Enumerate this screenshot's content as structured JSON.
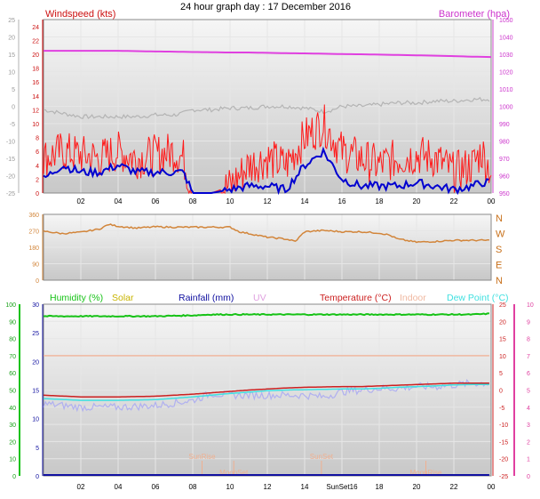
{
  "title": "24 hour graph day : 17 December 2016",
  "colors": {
    "background": "#ffffff",
    "plot_top": "#f6f6f6",
    "plot_bottom": "#c8c8c8",
    "grid": "#e6e6e6",
    "wind_speed": "#ff1a1a",
    "wind_avg": "#0000d0",
    "barometer": "#e040e0",
    "temp_left_axis": "#c0c0c0",
    "direction": "#d2853a",
    "humidity": "#16c216",
    "solar": "#c8b400",
    "rainfall": "#1010a0",
    "uv": "#e0a0e0",
    "temperature": "#cc2020",
    "indoor": "#f0b8a0",
    "dew_point": "#40e0e0",
    "apparent": "#b0b0f0",
    "sun_markers": "#f0b090"
  },
  "chart_data": [
    {
      "type": "line",
      "title": "Windspeed (kts)",
      "right_title": "Barometer (hpa)",
      "x_ticks": [
        "02",
        "04",
        "06",
        "08",
        "10",
        "12",
        "14",
        "16",
        "18",
        "20",
        "22",
        "00"
      ],
      "y_left_far_ticks": [
        "25",
        "20",
        "15",
        "10",
        "5",
        "0",
        "-5",
        "-10",
        "-15",
        "-20",
        "-25"
      ],
      "y_left_ticks": [
        "24",
        "22",
        "20",
        "18",
        "16",
        "14",
        "12",
        "10",
        "8",
        "6",
        "4",
        "2",
        "0"
      ],
      "y_right_ticks": [
        "1050",
        "1040",
        "1030",
        "1020",
        "1010",
        "1000",
        "990",
        "980",
        "970",
        "960",
        "950"
      ],
      "ylim_speed": [
        0,
        25
      ],
      "ylim_baro": [
        950,
        1050
      ],
      "ylim_temp": [
        -25,
        25
      ],
      "x_hours": [
        0,
        1,
        2,
        3,
        4,
        5,
        6,
        7,
        7.5,
        8,
        9,
        10,
        11,
        12,
        13,
        14,
        15,
        15.5,
        16,
        17,
        18,
        19,
        20,
        21,
        22,
        23,
        23.5,
        24
      ],
      "series": [
        {
          "name": "Barometer",
          "values": [
            1032,
            1032,
            1032,
            1032,
            1032,
            1031.8,
            1031.6,
            1031.5,
            1031.4,
            1031.3,
            1031.2,
            1031,
            1031,
            1030.8,
            1030.6,
            1030.5,
            1030.3,
            1030.2,
            1030.1,
            1030,
            1029.8,
            1029.6,
            1029.4,
            1029.2,
            1028.9,
            1028.6,
            1028.5,
            1028.4
          ]
        },
        {
          "name": "Temperature",
          "values": [
            -1,
            -2,
            -3,
            -3,
            -3,
            -3,
            -2.5,
            -2.5,
            -2,
            -1,
            -1,
            -0.5,
            -0.5,
            0,
            0,
            -0.5,
            -1.5,
            -1,
            0,
            0,
            0.5,
            1,
            1,
            1.5,
            1.5,
            2,
            2,
            2
          ]
        },
        {
          "name": "Wind Speed",
          "values": [
            5,
            6,
            5.5,
            5,
            6,
            5,
            5.5,
            6,
            5,
            0,
            0,
            1,
            4,
            5,
            4,
            8,
            10,
            8,
            6,
            5,
            4,
            5,
            5.5,
            5,
            3,
            4,
            6,
            3
          ]
        },
        {
          "name": "Average",
          "values": [
            2,
            4,
            3,
            3,
            4,
            3,
            3,
            3,
            3,
            0,
            0,
            0.5,
            1,
            1,
            0.5,
            4,
            6,
            4,
            2,
            1,
            1,
            1,
            1.5,
            1,
            0.5,
            1,
            1.5,
            1.5
          ]
        }
      ]
    },
    {
      "type": "line",
      "y_ticks": [
        "360",
        "270",
        "180",
        "90",
        "0"
      ],
      "y_right_labels": [
        "N",
        "W",
        "S",
        "E",
        "N"
      ],
      "ylim": [
        0,
        360
      ],
      "x_hours": [
        0,
        1,
        2,
        3,
        3.5,
        4,
        5,
        6,
        7,
        8,
        9,
        10,
        10.5,
        11,
        12,
        13,
        13.5,
        14,
        15,
        16,
        17,
        18,
        18.5,
        19,
        20,
        21,
        22,
        23,
        24
      ],
      "series": [
        {
          "name": "Wind Direction",
          "values": [
            268,
            255,
            262,
            280,
            305,
            295,
            285,
            292,
            290,
            290,
            290,
            290,
            265,
            255,
            235,
            225,
            212,
            265,
            272,
            265,
            265,
            258,
            248,
            225,
            208,
            212,
            218,
            218,
            218
          ]
        }
      ]
    },
    {
      "type": "line",
      "x_ticks": [
        "02",
        "04",
        "06",
        "08",
        "10",
        "12",
        "14",
        "SunSet16",
        "18",
        "20",
        "22",
        "00"
      ],
      "legend": [
        "Humidity (%)",
        "Solar",
        "Rainfall (mm)",
        "UV",
        "Temperature (°C)",
        "Indoor",
        "Dew Point (°C)"
      ],
      "y_hum_ticks": [
        "100",
        "90",
        "80",
        "70",
        "60",
        "50",
        "40",
        "30",
        "20",
        "10",
        "0"
      ],
      "y_rain_ticks": [
        "30",
        "25",
        "20",
        "15",
        "10",
        "5",
        "0"
      ],
      "y_temp_ticks": [
        "25",
        "20",
        "15",
        "10",
        "5",
        "0",
        "-5",
        "-10",
        "-15",
        "-20",
        "-25"
      ],
      "y_uv_ticks": [
        "10",
        "9",
        "8",
        "7",
        "6",
        "5",
        "4",
        "3",
        "2",
        "1",
        "0"
      ],
      "ylim_humidity": [
        0,
        100
      ],
      "ylim_temperature": [
        -25,
        25
      ],
      "annotations": [
        "SunRise",
        "SunSet",
        "MoonSet",
        "MoonRise"
      ],
      "x_hours": [
        0,
        2,
        4,
        6,
        8,
        9,
        10,
        11,
        12,
        13,
        14,
        15,
        16,
        17,
        18,
        19,
        20,
        21,
        22,
        23,
        24
      ],
      "series": [
        {
          "name": "Humidity",
          "values": [
            93,
            93,
            93,
            93,
            93.5,
            94,
            94,
            94,
            94,
            94,
            94,
            94,
            94,
            94,
            94,
            94,
            94,
            94,
            94,
            94,
            94.5
          ]
        },
        {
          "name": "Indoor",
          "values": [
            10,
            10,
            10,
            10,
            10,
            10,
            10,
            10,
            10,
            10,
            10,
            10,
            10,
            10,
            10,
            10,
            10,
            10,
            10,
            10,
            10
          ]
        },
        {
          "name": "Temperature",
          "values": [
            -1.5,
            -2,
            -2,
            -1.8,
            -1.2,
            -0.8,
            -0.4,
            0,
            0.3,
            0.6,
            0.8,
            0.9,
            1,
            1,
            1.2,
            1.4,
            1.6,
            1.8,
            2,
            2,
            2
          ]
        },
        {
          "name": "Dew Point",
          "values": [
            -2.5,
            -3,
            -3,
            -2.8,
            -2,
            -1.5,
            -1,
            -0.6,
            -0.2,
            0,
            0.1,
            0.2,
            0.3,
            0.3,
            0.5,
            0.8,
            1,
            1.2,
            1.5,
            1.6,
            1.6
          ]
        },
        {
          "name": "Apparent",
          "values": [
            -4,
            -5,
            -5,
            -4.5,
            -3,
            -1,
            -1.5,
            -1.5,
            -1.5,
            -1.5,
            -1.5,
            -2,
            -0.5,
            0,
            0.5,
            0.5,
            1,
            1,
            1.5,
            2,
            2
          ]
        },
        {
          "name": "Rainfall",
          "values": [
            0,
            0,
            0,
            0,
            0,
            0,
            0,
            0,
            0,
            0,
            0,
            0,
            0,
            0,
            0,
            0,
            0,
            0,
            0,
            0,
            0
          ]
        }
      ]
    }
  ]
}
